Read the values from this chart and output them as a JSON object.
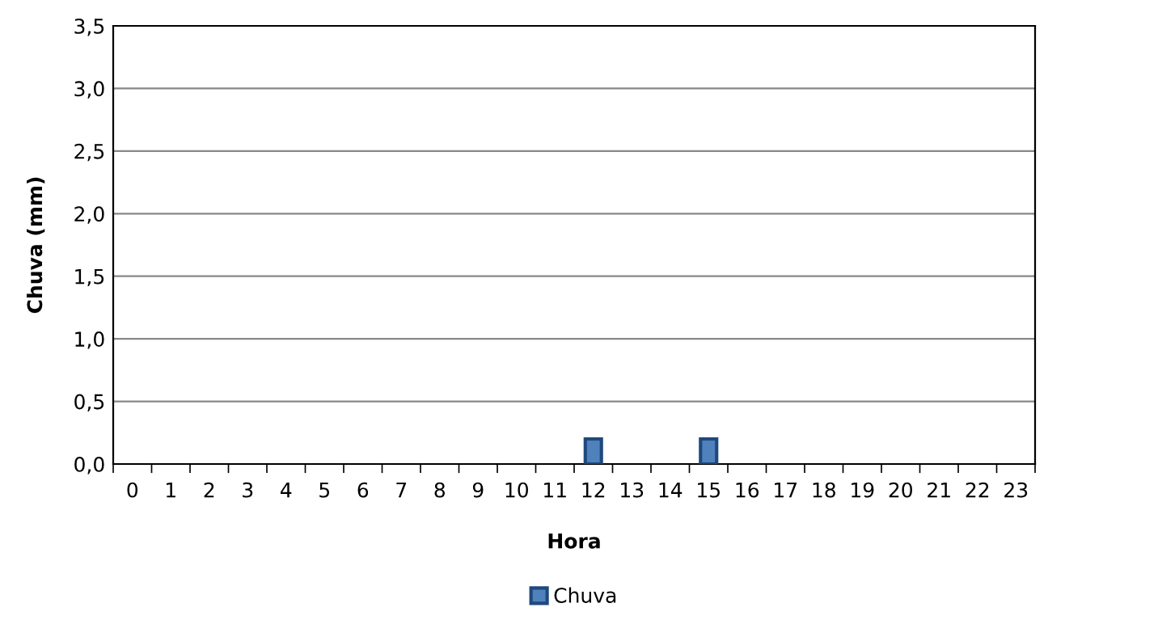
{
  "chart_data": {
    "type": "bar",
    "xlabel": "Hora",
    "ylabel": "Chuva (mm)",
    "categories": [
      "0",
      "1",
      "2",
      "3",
      "4",
      "5",
      "6",
      "7",
      "8",
      "9",
      "10",
      "11",
      "12",
      "13",
      "14",
      "15",
      "16",
      "17",
      "18",
      "19",
      "20",
      "21",
      "22",
      "23"
    ],
    "series": [
      {
        "name": "Chuva",
        "color": "#4f81bd",
        "values": [
          0,
          0,
          0,
          0,
          0,
          0,
          0,
          0,
          0,
          0,
          0,
          0,
          0.2,
          0,
          0,
          0.2,
          0,
          0,
          0,
          0,
          0,
          0,
          0,
          0
        ]
      }
    ],
    "ylim": [
      0,
      3.5
    ],
    "yticks": [
      {
        "value": 0,
        "label": "0,0"
      },
      {
        "value": 0.5,
        "label": "0,5"
      },
      {
        "value": 1,
        "label": "1,0"
      },
      {
        "value": 1.5,
        "label": "1,5"
      },
      {
        "value": 2,
        "label": "2,0"
      },
      {
        "value": 2.5,
        "label": "2,5"
      },
      {
        "value": 3,
        "label": "3,0"
      },
      {
        "value": 3.5,
        "label": "3,5"
      }
    ],
    "grid": "y",
    "legend": "bottom"
  }
}
